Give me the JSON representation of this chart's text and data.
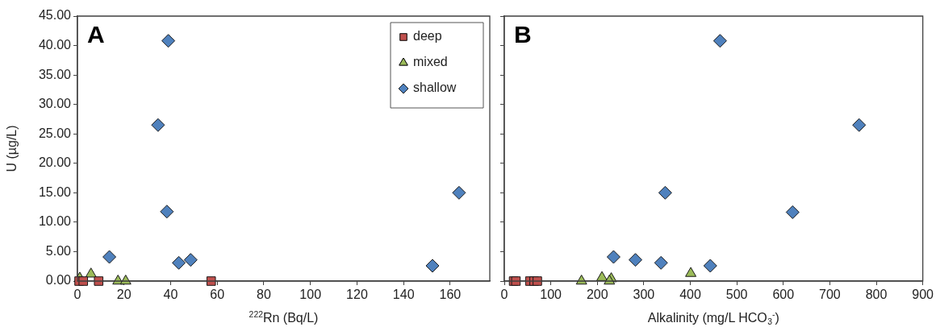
{
  "chart_data": [
    {
      "type": "scatter",
      "xlabel": "$^{222}$Rn (Bq/L)",
      "ylabel": "U (µg/L)",
      "annotations": [
        "A"
      ],
      "legend": "top right",
      "grid": false,
      "xlim": [
        0,
        177
      ],
      "xticks": [
        0,
        20,
        40,
        60,
        80,
        100,
        120,
        140,
        160
      ],
      "ylim": [
        0,
        45
      ],
      "yticks": [
        {
          "value": 0,
          "label": "0.00"
        },
        {
          "value": 5,
          "label": "5.00"
        },
        {
          "value": 10,
          "label": "10.00"
        },
        {
          "value": 15,
          "label": "15.00"
        },
        {
          "value": 20,
          "label": "20.00"
        },
        {
          "value": 25,
          "label": "25.00"
        },
        {
          "value": 30,
          "label": "30.00"
        },
        {
          "value": 35,
          "label": "35.00"
        },
        {
          "value": 40,
          "label": "40.00"
        },
        {
          "value": 45,
          "label": "45.00"
        }
      ],
      "series": [
        {
          "name": "deep",
          "color": "#c0504d",
          "marker": "square",
          "x": [
            0.7,
            2.5,
            9.1,
            57.4
          ],
          "values": [
            0,
            0,
            0,
            0
          ]
        },
        {
          "name": "mixed",
          "color": "#9bbb59",
          "marker": "triangle",
          "x": [
            1,
            5.8,
            17.4,
            20.7
          ],
          "values": [
            0.5,
            1.2,
            0,
            0
          ]
        },
        {
          "name": "shallow",
          "color": "#4f81bd",
          "marker": "diamond",
          "x": [
            39,
            34.6,
            38.4,
            13.7,
            43.5,
            48.6,
            152.4,
            163.8
          ],
          "values": [
            40.8,
            26.5,
            11.8,
            4.1,
            3.1,
            3.6,
            2.6,
            15
          ]
        }
      ]
    },
    {
      "type": "scatter",
      "xlabel": "Alkalinity (mg/L HCO$_{3}$$^{-}$)",
      "annotations": [
        "B"
      ],
      "grid": false,
      "tick_labels": "x",
      "xlim": [
        0,
        900
      ],
      "xticks": [
        0,
        100,
        200,
        300,
        400,
        500,
        600,
        700,
        800,
        900
      ],
      "ylim": [
        0,
        45
      ],
      "series": [
        {
          "color": "#c0504d",
          "marker": "square",
          "x": [
            20,
            25,
            55,
            64,
            71
          ],
          "values": [
            0,
            0,
            0,
            0,
            0
          ]
        },
        {
          "color": "#9bbb59",
          "marker": "triangle",
          "x": [
            166,
            210,
            230,
            226,
            401
          ],
          "values": [
            0,
            0.6,
            0.4,
            0,
            1.3
          ]
        },
        {
          "color": "#4f81bd",
          "marker": "diamond",
          "x": [
            464,
            763,
            346,
            620,
            235,
            282,
            337,
            443
          ],
          "values": [
            40.8,
            26.5,
            15,
            11.7,
            4.1,
            3.6,
            3.1,
            2.6
          ]
        }
      ]
    }
  ]
}
